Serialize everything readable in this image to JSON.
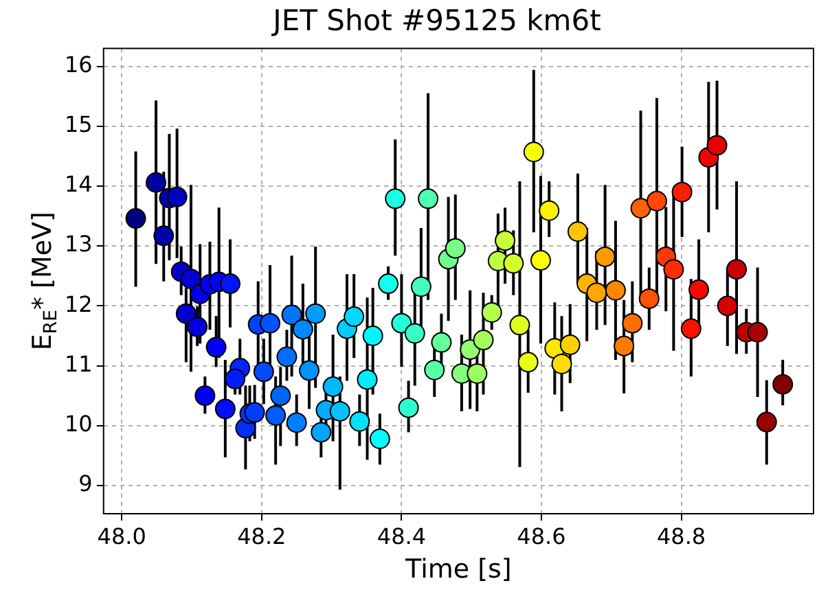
{
  "chart_data": {
    "type": "scatter",
    "title": "JET Shot #95125 km6t",
    "xlabel": "Time [s]",
    "ylabel": "E$_{RE}$* [MeV]",
    "xlim": [
      47.974,
      48.989
    ],
    "ylim": [
      8.53,
      16.3
    ],
    "xticks": [
      {
        "value": 48,
        "label": "48.0"
      },
      48.2,
      48.4,
      48.6,
      48.8
    ],
    "yticks": [
      9,
      10,
      11,
      12,
      13,
      14,
      15,
      16
    ],
    "grid": true,
    "legend": false,
    "marker": "circle",
    "x": [
      48.02,
      48.049,
      48.06,
      48.068,
      48.079,
      48.085,
      48.099,
      48.092,
      48.112,
      48.126,
      48.139,
      48.155,
      48.108,
      48.135,
      48.119,
      48.148,
      48.169,
      48.162,
      48.177,
      48.183,
      48.19,
      48.195,
      48.212,
      48.203,
      48.227,
      48.22,
      48.236,
      48.243,
      48.259,
      48.277,
      48.268,
      48.25,
      48.285,
      48.302,
      48.292,
      48.312,
      48.322,
      48.332,
      48.34,
      48.351,
      48.359,
      48.369,
      48.381,
      48.391,
      48.4,
      48.41,
      48.419,
      48.428,
      48.438,
      48.447,
      48.457,
      48.467,
      48.477,
      48.486,
      48.498,
      48.508,
      48.517,
      48.529,
      48.538,
      48.548,
      48.56,
      48.569,
      48.581,
      48.589,
      48.599,
      48.611,
      48.619,
      48.629,
      48.641,
      48.652,
      48.665,
      48.679,
      48.691,
      48.706,
      48.718,
      48.73,
      48.742,
      48.754,
      48.765,
      48.778,
      48.789,
      48.801,
      48.814,
      48.825,
      48.839,
      48.851,
      48.866,
      48.879,
      48.893,
      48.909,
      48.922,
      48.945
    ],
    "values": [
      13.46,
      14.06,
      13.17,
      13.8,
      13.82,
      12.57,
      12.45,
      11.87,
      12.2,
      12.36,
      12.4,
      12.37,
      11.65,
      11.31,
      10.5,
      10.28,
      10.96,
      10.78,
      9.96,
      10.2,
      10.22,
      11.69,
      11.71,
      10.9,
      10.5,
      10.17,
      11.15,
      11.85,
      11.61,
      11.87,
      10.92,
      10.05,
      9.89,
      10.65,
      10.26,
      10.24,
      11.62,
      11.82,
      10.07,
      10.77,
      11.5,
      9.78,
      12.37,
      13.79,
      11.71,
      10.3,
      11.54,
      12.32,
      13.79,
      10.93,
      11.39,
      12.78,
      12.96,
      10.87,
      11.27,
      10.87,
      11.43,
      11.89,
      12.75,
      13.09,
      12.71,
      11.68,
      11.06,
      14.57,
      12.76,
      13.59,
      11.29,
      11.03,
      11.35,
      13.24,
      12.37,
      12.22,
      12.82,
      12.26,
      11.33,
      11.71,
      13.63,
      12.12,
      13.75,
      12.82,
      12.61,
      13.9,
      11.62,
      12.27,
      14.48,
      14.68,
      12.0,
      12.61,
      11.56,
      11.56,
      10.06,
      10.69
    ],
    "errors": [
      [
        12.32,
        14.58
      ],
      [
        12.7,
        15.43
      ],
      [
        12.41,
        14.24
      ],
      [
        12.76,
        14.87
      ],
      [
        12.8,
        14.96
      ],
      [
        12.18,
        12.99
      ],
      [
        10.9,
        14.02
      ],
      [
        11.06,
        12.3
      ],
      [
        11.37,
        13.03
      ],
      [
        11.6,
        13.07
      ],
      [
        11.13,
        13.64
      ],
      [
        11.64,
        13.11
      ],
      [
        11.33,
        11.99
      ],
      [
        10.98,
        11.83
      ],
      [
        10.2,
        10.82
      ],
      [
        9.47,
        11.1
      ],
      [
        10.52,
        11.45
      ],
      [
        10.52,
        11.06
      ],
      [
        9.27,
        10.67
      ],
      [
        9.74,
        10.67
      ],
      [
        9.78,
        10.68
      ],
      [
        10.98,
        12.41
      ],
      [
        10.9,
        12.68
      ],
      [
        10.36,
        11.45
      ],
      [
        9.66,
        10.98
      ],
      [
        9.35,
        10.82
      ],
      [
        10.75,
        11.6
      ],
      [
        10.82,
        12.84
      ],
      [
        10.82,
        12.37
      ],
      [
        10.63,
        12.99
      ],
      [
        10.28,
        11.52
      ],
      [
        9.66,
        10.52
      ],
      [
        9.47,
        10.28
      ],
      [
        9.74,
        11.52
      ],
      [
        9.89,
        10.67
      ],
      [
        8.93,
        10.82
      ],
      [
        10.75,
        12.53
      ],
      [
        11.13,
        12.53
      ],
      [
        9.66,
        10.52
      ],
      [
        9.43,
        12.14
      ],
      [
        10.52,
        12.3
      ],
      [
        9.35,
        10.2
      ],
      [
        12.1,
        12.66
      ],
      [
        12.84,
        14.78
      ],
      [
        10.98,
        12.53
      ],
      [
        9.89,
        10.75
      ],
      [
        10.67,
        12.22
      ],
      [
        11.45,
        13.3
      ],
      [
        12.1,
        15.55
      ],
      [
        10.48,
        11.29
      ],
      [
        10.98,
        11.87
      ],
      [
        11.75,
        13.82
      ],
      [
        12.1,
        13.86
      ],
      [
        10.24,
        11.52
      ],
      [
        10.28,
        12.26
      ],
      [
        10.24,
        11.45
      ],
      [
        10.52,
        12.22
      ],
      [
        11.6,
        12.18
      ],
      [
        11.91,
        13.54
      ],
      [
        12.37,
        13.64
      ],
      [
        12.18,
        13.26
      ],
      [
        9.31,
        14.08
      ],
      [
        10.55,
        11.6
      ],
      [
        13.23,
        15.94
      ],
      [
        11.37,
        14.17
      ],
      [
        13.15,
        14.08
      ],
      [
        10.52,
        12.06
      ],
      [
        10.24,
        11.83
      ],
      [
        10.71,
        12.03
      ],
      [
        12.37,
        14.21
      ],
      [
        11.41,
        13.3
      ],
      [
        11.6,
        12.92
      ],
      [
        11.68,
        14.02
      ],
      [
        11.1,
        13.42
      ],
      [
        10.54,
        12.1
      ],
      [
        11.06,
        12.41
      ],
      [
        12.06,
        15.26
      ],
      [
        11.6,
        12.64
      ],
      [
        12.18,
        15.47
      ],
      [
        11.91,
        13.65
      ],
      [
        11.25,
        13.85
      ],
      [
        13.15,
        14.66
      ],
      [
        10.82,
        12.45
      ],
      [
        11.68,
        13.11
      ],
      [
        13.23,
        15.74
      ],
      [
        13.61,
        15.76
      ],
      [
        11.33,
        12.64
      ],
      [
        11.2,
        14.08
      ],
      [
        11.2,
        11.95
      ],
      [
        10.48,
        12.64
      ],
      [
        9.35,
        10.76
      ],
      [
        10.34,
        11.1
      ]
    ],
    "colors": [
      "#000080",
      "#00009f",
      "#0000ac",
      "#0000b5",
      "#0000c1",
      "#0000c7",
      "#0000d7",
      "#0000cf",
      "#0000e5",
      "#0000f4",
      "#0004ff",
      "#0015ff",
      "#0000e1",
      "#0000fe",
      "#0000ed",
      "#000eff",
      "#0025ff",
      "#001dff",
      "#002eff",
      "#0034ff",
      "#003cff",
      "#0042ff",
      "#0054ff",
      "#004aff",
      "#0065ff",
      "#005dff",
      "#006fff",
      "#0076ff",
      "#0088ff",
      "#009cff",
      "#0092ff",
      "#007eff",
      "#00a5ff",
      "#00b7ff",
      "#00acff",
      "#00c3ff",
      "#00cdff",
      "#00d8ff",
      "#00e1ff",
      "#00edff",
      "#00f6ff",
      "#02fffd",
      "#10ffef",
      "#1affe4",
      "#24ffda",
      "#2fffcf",
      "#39ffc6",
      "#43ffbb",
      "#4effb1",
      "#58ffa7",
      "#63ff9b",
      "#6eff91",
      "#79ff86",
      "#83ff7c",
      "#91ff6e",
      "#9bff63",
      "#a5ff59",
      "#b3ff4c",
      "#bdff42",
      "#c8ff37",
      "#d5ff2a",
      "#dfff20",
      "#ecff13",
      "#f5ff0a",
      "#fffe00",
      "#fff100",
      "#ffe800",
      "#ffdd00",
      "#ffd000",
      "#ffc400",
      "#ffb500",
      "#ffa600",
      "#ff9900",
      "#ff8800",
      "#ff7b00",
      "#ff6e00",
      "#ff6000",
      "#ff5300",
      "#ff4700",
      "#ff3900",
      "#ff2d00",
      "#ff1f00",
      "#ff1100",
      "#ff0500",
      "#f50000",
      "#e70000",
      "#d70000",
      "#c80000",
      "#b90000",
      "#a70000",
      "#990000",
      "#800000"
    ]
  }
}
